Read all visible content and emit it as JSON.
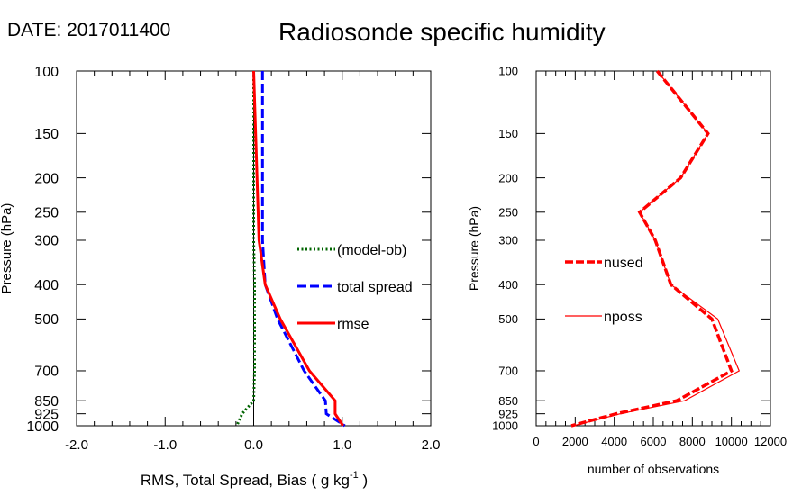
{
  "header": {
    "date_label": "DATE: 2017011400",
    "title": "Radiosonde specific humidity"
  },
  "chart_data": [
    {
      "type": "line",
      "panel": "left",
      "xlabel": "RMS, Total Spread, Bias ( g kg",
      "xlabel_exp": "-1",
      "xlabel_tail": " )",
      "ylabel": "Pressure (hPa)",
      "xlim": [
        -2.0,
        2.0
      ],
      "ylim": [
        1000,
        100
      ],
      "y_scale": "log",
      "x_ticks": [
        -2.0,
        -1.0,
        0.0,
        1.0,
        2.0
      ],
      "x_tick_labels": [
        "-2.0",
        "-1.0",
        "0.0",
        "1.0",
        "2.0"
      ],
      "y_ticks": [
        100,
        150,
        200,
        250,
        300,
        400,
        500,
        700,
        850,
        925,
        1000
      ],
      "y_tick_labels": [
        "100",
        "150",
        "200",
        "250",
        "300",
        "400",
        "500",
        "700",
        "850",
        "925",
        "1000"
      ],
      "zero_line": true,
      "legend_placement": "center-right",
      "series": [
        {
          "name": "(model-ob)",
          "color": "#006400",
          "style": "dotted",
          "pressure": [
            100,
            300,
            400,
            500,
            700,
            850,
            925,
            1000
          ],
          "values": [
            0.0,
            0.0,
            0.01,
            0.01,
            0.01,
            0.0,
            -0.13,
            -0.19
          ]
        },
        {
          "name": "total spread",
          "color": "#0000ff",
          "style": "dashed",
          "pressure": [
            100,
            300,
            400,
            500,
            700,
            850,
            925,
            1000
          ],
          "values": [
            0.1,
            0.1,
            0.13,
            0.27,
            0.57,
            0.81,
            0.82,
            1.03
          ]
        },
        {
          "name": "rmse",
          "color": "#ff0000",
          "style": "solid",
          "pressure": [
            100,
            300,
            400,
            500,
            700,
            850,
            925,
            1000
          ],
          "values": [
            0.0,
            0.06,
            0.13,
            0.3,
            0.63,
            0.92,
            0.92,
            1.01
          ]
        }
      ]
    },
    {
      "type": "line",
      "panel": "right",
      "xlabel": "number of observations",
      "ylabel": "Pressure (hPa)",
      "xlim": [
        0,
        12000
      ],
      "ylim": [
        1000,
        100
      ],
      "y_scale": "log",
      "x_ticks": [
        0,
        2000,
        4000,
        6000,
        8000,
        10000,
        12000
      ],
      "x_tick_labels": [
        "0",
        "2000",
        "4000",
        "6000",
        "8000",
        "10000",
        "12000"
      ],
      "y_ticks": [
        100,
        150,
        200,
        250,
        300,
        400,
        500,
        700,
        850,
        925,
        1000
      ],
      "y_tick_labels": [
        "100",
        "150",
        "200",
        "250",
        "300",
        "400",
        "500",
        "700",
        "850",
        "925",
        "1000"
      ],
      "legend_placement": "center-left",
      "series": [
        {
          "name": "nused",
          "color": "#ff0000",
          "style": "dashed-thick",
          "pressure": [
            100,
            150,
            200,
            250,
            300,
            400,
            500,
            700,
            850,
            925,
            1000
          ],
          "values": [
            6200,
            8800,
            7400,
            5300,
            6100,
            6900,
            9000,
            10000,
            7200,
            4100,
            1800
          ]
        },
        {
          "name": "nposs",
          "color": "#ff0000",
          "style": "solid-thin",
          "pressure": [
            100,
            150,
            200,
            250,
            300,
            400,
            500,
            700,
            850,
            925,
            1000
          ],
          "values": [
            6200,
            8800,
            7400,
            5300,
            6100,
            6900,
            9300,
            10400,
            7600,
            4300,
            1900
          ]
        }
      ]
    }
  ]
}
